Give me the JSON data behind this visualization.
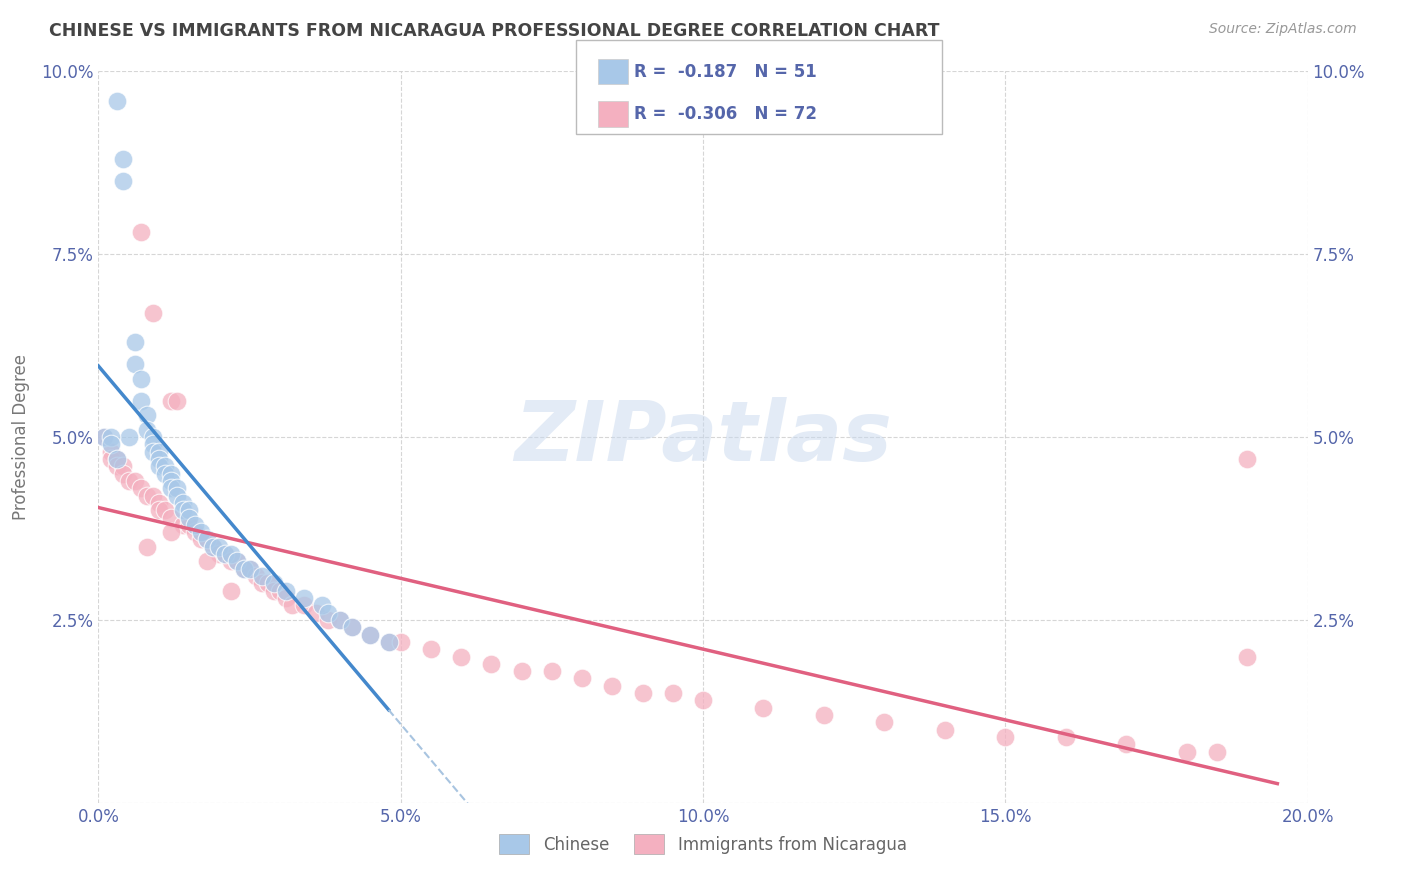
{
  "title": "CHINESE VS IMMIGRANTS FROM NICARAGUA PROFESSIONAL DEGREE CORRELATION CHART",
  "source": "Source: ZipAtlas.com",
  "ylabel": "Professional Degree",
  "watermark": "ZIPatlas",
  "legend_blue_r_val": "-0.187",
  "legend_blue_n_val": "51",
  "legend_pink_r_val": "-0.306",
  "legend_pink_n_val": "72",
  "legend_labels": [
    "Chinese",
    "Immigrants from Nicaragua"
  ],
  "xlim": [
    0.0,
    0.2
  ],
  "ylim": [
    0.0,
    0.1
  ],
  "xticks": [
    0.0,
    0.05,
    0.1,
    0.15,
    0.2
  ],
  "yticks": [
    0.0,
    0.025,
    0.05,
    0.075,
    0.1
  ],
  "xticklabels": [
    "0.0%",
    "5.0%",
    "10.0%",
    "15.0%",
    "20.0%"
  ],
  "yticklabels": [
    "",
    "2.5%",
    "5.0%",
    "7.5%",
    "10.0%"
  ],
  "blue_color": "#a8c8e8",
  "pink_color": "#f4b0c0",
  "blue_line_color": "#4488cc",
  "pink_line_color": "#e06080",
  "dashed_line_color": "#a8c4e0",
  "background_color": "#ffffff",
  "grid_color": "#cccccc",
  "title_color": "#444444",
  "axis_color": "#5566aa",
  "chinese_x": [
    0.003,
    0.004,
    0.004,
    0.005,
    0.006,
    0.006,
    0.007,
    0.007,
    0.008,
    0.008,
    0.009,
    0.009,
    0.009,
    0.01,
    0.01,
    0.01,
    0.011,
    0.011,
    0.012,
    0.012,
    0.012,
    0.013,
    0.013,
    0.014,
    0.014,
    0.015,
    0.015,
    0.016,
    0.017,
    0.018,
    0.019,
    0.02,
    0.021,
    0.022,
    0.023,
    0.024,
    0.025,
    0.027,
    0.029,
    0.031,
    0.034,
    0.037,
    0.038,
    0.04,
    0.042,
    0.045,
    0.048,
    0.001,
    0.002,
    0.002,
    0.003
  ],
  "chinese_y": [
    0.096,
    0.088,
    0.085,
    0.05,
    0.063,
    0.06,
    0.058,
    0.055,
    0.053,
    0.051,
    0.05,
    0.049,
    0.048,
    0.048,
    0.047,
    0.046,
    0.046,
    0.045,
    0.045,
    0.044,
    0.043,
    0.043,
    0.042,
    0.041,
    0.04,
    0.04,
    0.039,
    0.038,
    0.037,
    0.036,
    0.035,
    0.035,
    0.034,
    0.034,
    0.033,
    0.032,
    0.032,
    0.031,
    0.03,
    0.029,
    0.028,
    0.027,
    0.026,
    0.025,
    0.024,
    0.023,
    0.022,
    0.05,
    0.05,
    0.049,
    0.047
  ],
  "nicaragua_x": [
    0.001,
    0.002,
    0.002,
    0.003,
    0.003,
    0.004,
    0.004,
    0.005,
    0.006,
    0.007,
    0.007,
    0.008,
    0.009,
    0.009,
    0.01,
    0.01,
    0.011,
    0.012,
    0.012,
    0.013,
    0.014,
    0.015,
    0.016,
    0.017,
    0.018,
    0.019,
    0.02,
    0.021,
    0.022,
    0.023,
    0.024,
    0.025,
    0.026,
    0.027,
    0.028,
    0.029,
    0.03,
    0.031,
    0.032,
    0.034,
    0.036,
    0.038,
    0.04,
    0.042,
    0.045,
    0.048,
    0.05,
    0.055,
    0.06,
    0.065,
    0.07,
    0.075,
    0.08,
    0.085,
    0.09,
    0.095,
    0.1,
    0.11,
    0.12,
    0.13,
    0.14,
    0.15,
    0.16,
    0.17,
    0.18,
    0.185,
    0.19,
    0.008,
    0.012,
    0.018,
    0.022,
    0.19
  ],
  "nicaragua_y": [
    0.05,
    0.048,
    0.047,
    0.047,
    0.046,
    0.046,
    0.045,
    0.044,
    0.044,
    0.043,
    0.078,
    0.042,
    0.042,
    0.067,
    0.041,
    0.04,
    0.04,
    0.039,
    0.055,
    0.055,
    0.038,
    0.038,
    0.037,
    0.036,
    0.036,
    0.035,
    0.034,
    0.034,
    0.033,
    0.033,
    0.032,
    0.032,
    0.031,
    0.03,
    0.03,
    0.029,
    0.029,
    0.028,
    0.027,
    0.027,
    0.026,
    0.025,
    0.025,
    0.024,
    0.023,
    0.022,
    0.022,
    0.021,
    0.02,
    0.019,
    0.018,
    0.018,
    0.017,
    0.016,
    0.015,
    0.015,
    0.014,
    0.013,
    0.012,
    0.011,
    0.01,
    0.009,
    0.009,
    0.008,
    0.007,
    0.007,
    0.02,
    0.035,
    0.037,
    0.033,
    0.029,
    0.047
  ]
}
